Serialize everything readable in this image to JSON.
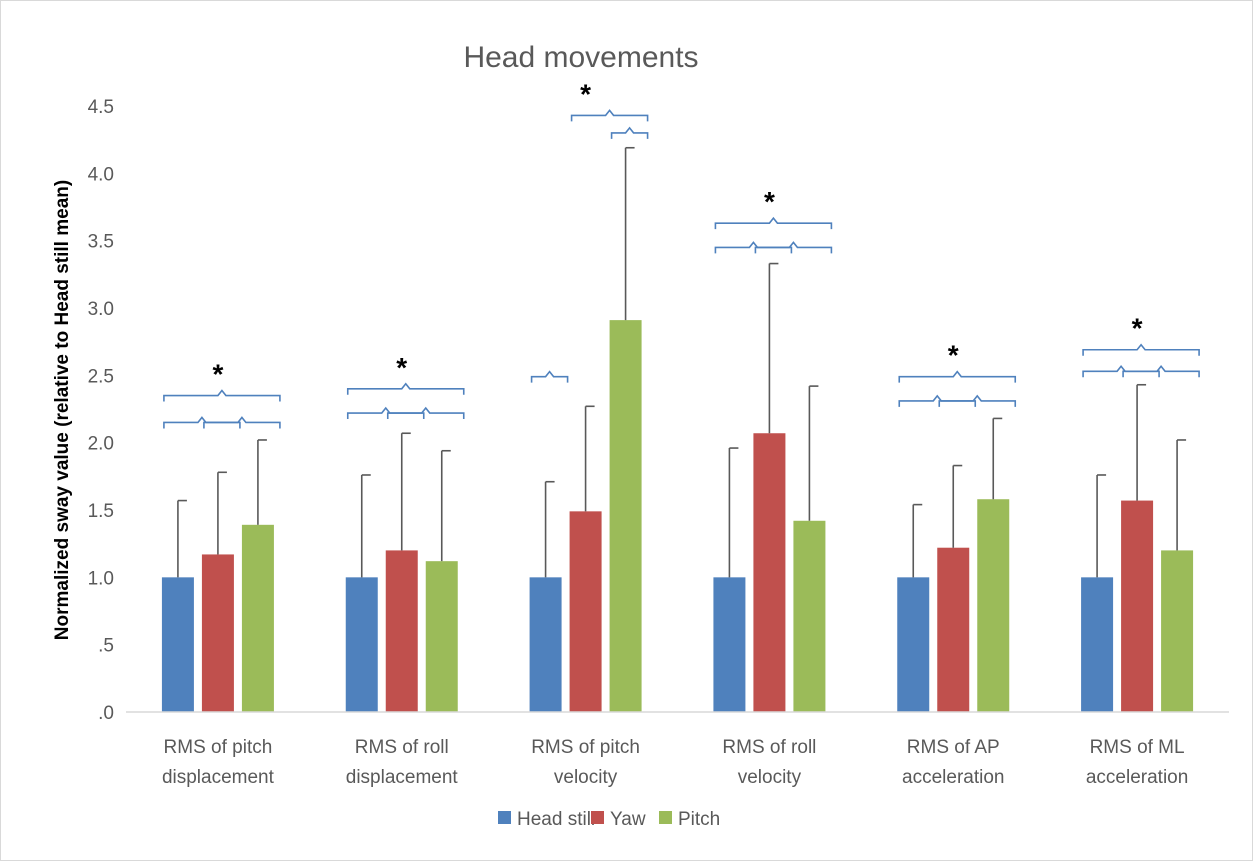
{
  "chart_data": {
    "type": "bar",
    "title": "Head movements",
    "xlabel": "",
    "ylabel": "Normalized sway value (relative to Head still mean)",
    "ylim": [
      0,
      4.5
    ],
    "yticks": [
      ".0",
      ".5",
      "1.0",
      "1.5",
      "2.0",
      "2.5",
      "3.0",
      "3.5",
      "4.0",
      "4.5"
    ],
    "categories": [
      [
        "RMS of pitch",
        "displacement"
      ],
      [
        "RMS of roll",
        "displacement"
      ],
      [
        "RMS of pitch",
        "velocity"
      ],
      [
        "RMS of roll",
        "velocity"
      ],
      [
        "RMS of AP",
        "acceleration"
      ],
      [
        "RMS of ML",
        "acceleration"
      ]
    ],
    "series": [
      {
        "name": "Head still",
        "color": "#4f81bd",
        "values": [
          1.0,
          1.0,
          1.0,
          1.0,
          1.0,
          1.0
        ],
        "error_upper": [
          1.57,
          1.76,
          1.71,
          1.96,
          1.54,
          1.76
        ]
      },
      {
        "name": "Yaw",
        "color": "#c0504d",
        "values": [
          1.17,
          1.2,
          1.49,
          2.07,
          1.22,
          1.57
        ],
        "error_upper": [
          1.78,
          2.07,
          2.27,
          3.33,
          1.83,
          2.43
        ]
      },
      {
        "name": "Pitch",
        "color": "#9bbb59",
        "values": [
          1.39,
          1.12,
          2.91,
          1.42,
          1.58,
          1.2
        ],
        "error_upper": [
          2.02,
          1.94,
          4.19,
          2.42,
          2.18,
          2.02
        ]
      }
    ],
    "significance": [
      {
        "category": 0,
        "star": "*",
        "brackets": [
          {
            "from": 0,
            "to": 2,
            "y": 2.35
          },
          {
            "from": 0,
            "to": 1,
            "y": 2.15
          },
          {
            "from": 1,
            "to": 2,
            "y": 2.15
          }
        ]
      },
      {
        "category": 1,
        "star": "*",
        "brackets": [
          {
            "from": 0,
            "to": 2,
            "y": 2.4
          },
          {
            "from": 0,
            "to": 1,
            "y": 2.22
          },
          {
            "from": 1,
            "to": 2,
            "y": 2.22
          }
        ]
      },
      {
        "category": 2,
        "star": "*",
        "brackets": [
          {
            "from": 0,
            "to": 0,
            "y": 2.49
          },
          {
            "from": 1,
            "to": 2,
            "y": 4.43
          },
          {
            "from": 2,
            "to": 2,
            "y": 4.3
          }
        ]
      },
      {
        "category": 3,
        "star": "*",
        "brackets": [
          {
            "from": 0,
            "to": 2,
            "y": 3.63
          },
          {
            "from": 0,
            "to": 1,
            "y": 3.45
          },
          {
            "from": 1,
            "to": 2,
            "y": 3.45
          }
        ]
      },
      {
        "category": 4,
        "star": "*",
        "brackets": [
          {
            "from": 0,
            "to": 2,
            "y": 2.49
          },
          {
            "from": 0,
            "to": 1,
            "y": 2.31
          },
          {
            "from": 1,
            "to": 2,
            "y": 2.31
          }
        ]
      },
      {
        "category": 5,
        "star": "*",
        "brackets": [
          {
            "from": 0,
            "to": 2,
            "y": 2.69
          },
          {
            "from": 0,
            "to": 1,
            "y": 2.53
          },
          {
            "from": 1,
            "to": 2,
            "y": 2.53
          }
        ]
      }
    ],
    "grid": false,
    "legend_position": "bottom"
  }
}
